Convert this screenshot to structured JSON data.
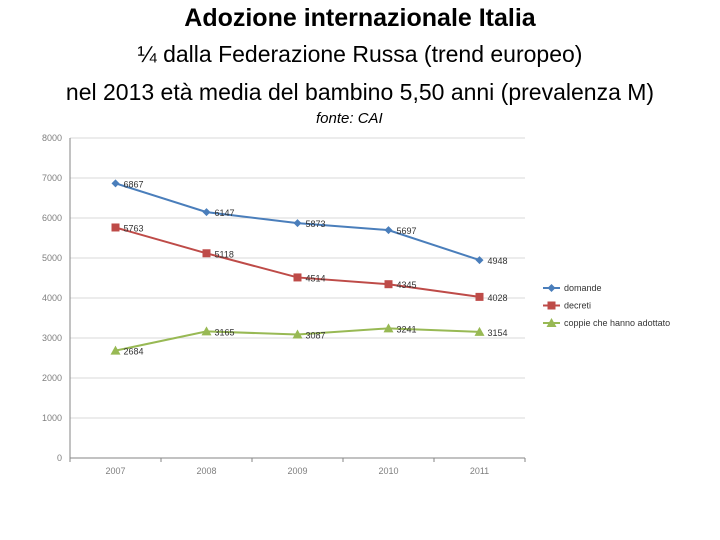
{
  "header": {
    "title": "Adozione internazionale Italia",
    "subtitle1": "¼ dalla Federazione Russa (trend europeo)",
    "subtitle2": "nel 2013 età media del bambino 5,50 anni (prevalenza M)",
    "source": "fonte: CAI"
  },
  "chart_data": {
    "type": "line",
    "title": "",
    "xlabel": "",
    "ylabel": "",
    "categories": [
      "2007",
      "2008",
      "2009",
      "2010",
      "2011"
    ],
    "ylim": [
      0,
      8000
    ],
    "yticks": [
      "0",
      "1000",
      "2000",
      "3000",
      "4000",
      "5000",
      "6000",
      "7000",
      "8000"
    ],
    "grid": true,
    "legend": "right",
    "series": [
      {
        "name": "domande",
        "values": [
          6867,
          6147,
          5873,
          5697,
          4948
        ],
        "labels": [
          "6867",
          "6147",
          "5873",
          "5697",
          "4948"
        ],
        "color": "#4a7ebb",
        "marker": "diamond"
      },
      {
        "name": "decreti",
        "values": [
          5763,
          5118,
          4514,
          4345,
          4028
        ],
        "labels": [
          "5763",
          "5118",
          "4514",
          "4345",
          "4028"
        ],
        "color": "#be4b48",
        "marker": "square"
      },
      {
        "name": "coppie che hanno adottato",
        "values": [
          2684,
          3165,
          3087,
          3241,
          3154
        ],
        "labels": [
          "2684",
          "3165",
          "3087",
          "3241",
          "3154"
        ],
        "color": "#98b954",
        "marker": "triangle"
      }
    ]
  }
}
